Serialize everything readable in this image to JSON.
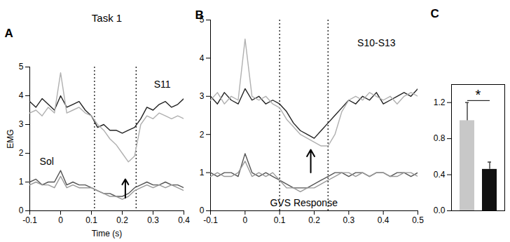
{
  "chart_data": [
    {
      "type": "line",
      "panel": "A",
      "title": "Task 1",
      "x_label": "Time (s)",
      "y_label": "EMG",
      "x": [
        -0.1,
        -0.08,
        -0.06,
        -0.04,
        -0.02,
        0,
        0.02,
        0.04,
        0.06,
        0.08,
        0.1,
        0.12,
        0.14,
        0.16,
        0.18,
        0.2,
        0.22,
        0.24,
        0.26,
        0.28,
        0.3,
        0.32,
        0.34,
        0.36,
        0.38,
        0.4
      ],
      "series": [
        {
          "color": "#222222",
          "values": [
            3.8,
            3.6,
            3.9,
            3.7,
            3.5,
            4.0,
            3.6,
            3.7,
            3.8,
            3.5,
            3.3,
            2.9,
            3.0,
            2.8,
            2.8,
            2.7,
            2.8,
            2.9,
            3.2,
            3.6,
            3.5,
            3.7,
            3.8,
            3.6,
            3.7,
            3.9
          ]
        },
        {
          "color": "#b0b0b0",
          "values": [
            3.4,
            3.5,
            3.3,
            3.6,
            3.4,
            4.8,
            3.4,
            3.5,
            3.6,
            3.4,
            3.3,
            3.0,
            2.8,
            2.5,
            2.3,
            2.0,
            1.7,
            1.9,
            3.0,
            3.3,
            3.2,
            3.4,
            3.3,
            3.2,
            3.3,
            3.2
          ]
        },
        {
          "color": "#555555",
          "values": [
            1.0,
            1.1,
            0.9,
            1.0,
            1.0,
            1.4,
            0.9,
            1.0,
            0.9,
            0.9,
            0.8,
            0.7,
            0.6,
            0.6,
            0.5,
            0.5,
            0.6,
            0.8,
            0.9,
            1.0,
            0.9,
            0.9,
            1.0,
            0.9,
            0.9,
            0.8
          ]
        },
        {
          "color": "#999999",
          "values": [
            0.9,
            1.0,
            0.9,
            0.9,
            0.8,
            1.2,
            0.8,
            0.9,
            0.8,
            0.8,
            0.8,
            0.7,
            0.6,
            0.5,
            0.5,
            0.4,
            0.5,
            0.7,
            0.8,
            0.9,
            0.8,
            0.9,
            0.8,
            0.9,
            0.8,
            0.7
          ]
        }
      ],
      "xlim": [
        -0.1,
        0.4
      ],
      "xticks": [
        -0.1,
        0,
        0.1,
        0.2,
        0.3,
        0.4
      ],
      "ylim": [
        0,
        5
      ],
      "yticks": [
        0,
        1,
        2,
        3,
        4,
        5
      ],
      "vlines": [
        0.11,
        0.245
      ],
      "arrow": {
        "x": 0.21,
        "y1": 0.45,
        "y2": 1.1
      },
      "annotations": [
        {
          "text": "S11",
          "x": 0.33,
          "y": 4.4
        },
        {
          "text": "Sol",
          "x": -0.045,
          "y": 1.7
        }
      ]
    },
    {
      "type": "line",
      "panel": "B",
      "x": [
        -0.1,
        -0.08,
        -0.06,
        -0.04,
        -0.02,
        0,
        0.02,
        0.04,
        0.06,
        0.08,
        0.1,
        0.12,
        0.14,
        0.16,
        0.18,
        0.2,
        0.22,
        0.24,
        0.26,
        0.28,
        0.3,
        0.32,
        0.34,
        0.36,
        0.38,
        0.4,
        0.42,
        0.44,
        0.46,
        0.48,
        0.5
      ],
      "series": [
        {
          "color": "#222222",
          "values": [
            3.0,
            2.8,
            3.1,
            2.9,
            2.8,
            3.2,
            2.9,
            3.0,
            2.8,
            2.9,
            2.8,
            2.6,
            2.3,
            2.1,
            2.0,
            1.9,
            2.1,
            2.3,
            2.5,
            2.7,
            2.9,
            2.8,
            3.0,
            2.9,
            3.1,
            2.8,
            2.9,
            3.0,
            3.1,
            3.0,
            3.2
          ]
        },
        {
          "color": "#b0b0b0",
          "values": [
            2.9,
            3.1,
            2.8,
            3.0,
            2.9,
            4.5,
            3.0,
            2.9,
            3.0,
            2.8,
            2.7,
            2.4,
            2.2,
            2.0,
            1.9,
            1.8,
            1.7,
            1.7,
            2.0,
            2.6,
            2.9,
            3.0,
            2.9,
            3.1,
            3.0,
            2.9,
            3.0,
            2.8,
            3.0,
            3.1,
            3.0
          ]
        },
        {
          "color": "#555555",
          "values": [
            1.0,
            0.9,
            1.0,
            1.0,
            0.9,
            1.5,
            1.0,
            0.9,
            1.0,
            0.9,
            0.8,
            0.7,
            0.6,
            0.6,
            0.6,
            0.7,
            0.8,
            0.9,
            1.0,
            1.0,
            0.9,
            1.0,
            1.0,
            0.9,
            1.0,
            1.0,
            0.9,
            1.0,
            1.0,
            0.9,
            1.0
          ]
        },
        {
          "color": "#999999",
          "values": [
            0.9,
            1.0,
            0.9,
            0.9,
            1.0,
            1.3,
            0.9,
            1.0,
            0.9,
            1.0,
            0.8,
            0.6,
            0.6,
            0.5,
            0.6,
            0.6,
            0.7,
            0.8,
            0.9,
            1.0,
            1.0,
            0.9,
            1.0,
            0.9,
            1.0,
            1.0,
            0.9,
            0.9,
            1.0,
            1.0,
            0.9
          ]
        }
      ],
      "xlim": [
        -0.1,
        0.5
      ],
      "xticks": [
        -0.1,
        0,
        0.1,
        0.2,
        0.3,
        0.4,
        0.5
      ],
      "ylim": [
        0,
        5
      ],
      "yticks": [
        0,
        1,
        2,
        3,
        4,
        5
      ],
      "vlines": [
        0.1,
        0.24
      ],
      "arrow": {
        "x": 0.19,
        "y1": 1.0,
        "y2": 1.6
      },
      "annotations": [
        {
          "text": "S10-S13",
          "x": 0.38,
          "y": 4.4
        },
        {
          "text": "GVS Response",
          "x": 0.17,
          "y": 0.2
        }
      ]
    },
    {
      "type": "bar",
      "panel": "C",
      "categories": [
        null,
        null
      ],
      "values": [
        1.0,
        0.46
      ],
      "errors": [
        0.2,
        0.08
      ],
      "colors": [
        "#c8c8c8",
        "#111111"
      ],
      "ylim": [
        0,
        1.4
      ],
      "yticks": [
        {
          "value": 0,
          "label": "0.0"
        },
        0.4,
        0.8,
        1.2
      ],
      "tick_labels": "y",
      "annotations": [
        {
          "text": "*",
          "y": 1.3
        }
      ]
    }
  ]
}
